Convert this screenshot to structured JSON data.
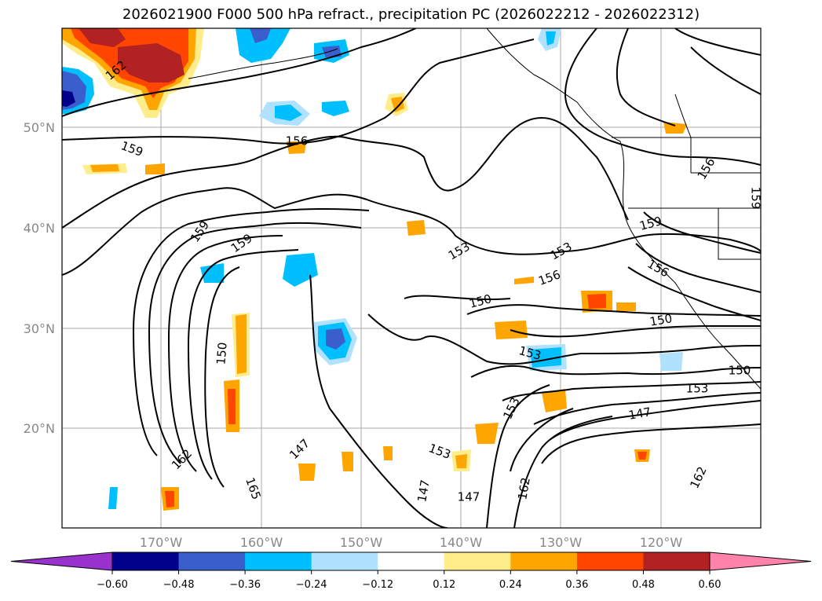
{
  "title": "2026021900 F000 500 hPa refract., precipitation PC (2026022212 - 2026022312)",
  "lat_labels": [
    "50°N",
    "40°N",
    "30°N",
    "20°N"
  ],
  "lon_labels": [
    "170°W",
    "160°W",
    "150°W",
    "140°W",
    "130°W",
    "120°W"
  ],
  "contour_labels": [
    "162",
    "159",
    "156",
    "159",
    "159",
    "153",
    "153",
    "156",
    "150",
    "150",
    "150",
    "153",
    "153",
    "150",
    "147",
    "147",
    "162",
    "165",
    "162",
    "156",
    "159",
    "156",
    "153",
    "153",
    "147",
    "147",
    "162",
    "159"
  ],
  "colorbar": {
    "ticks": [
      "−0.60",
      "−0.48",
      "−0.36",
      "−0.24",
      "−0.12",
      "0.12",
      "0.24",
      "0.36",
      "0.48",
      "0.60"
    ],
    "colors": {
      "under": "#9932cc",
      "bins": [
        "#9932cc",
        "#00008b",
        "#3a5fcd",
        "#00bfff",
        "#b0e2ff",
        "#ffffff",
        "#ffec8b",
        "#ffa500",
        "#ff4500",
        "#b22222",
        "#ff82ab"
      ],
      "over": "#ff82ab"
    }
  }
}
